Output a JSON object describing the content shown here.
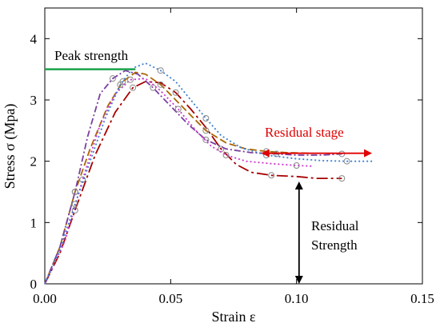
{
  "chart_data": {
    "type": "line",
    "xlabel": "Strain ε",
    "ylabel": "Stress σ (Mpa)",
    "xlim": [
      0,
      0.15
    ],
    "ylim": [
      0,
      4.5
    ],
    "x_ticks": [
      0,
      0.05,
      0.1,
      0.15
    ],
    "x_tick_labels": [
      "0.00",
      "0.05",
      "0.10",
      "0.15"
    ],
    "y_ticks": [
      0,
      1,
      2,
      3,
      4
    ],
    "y_tick_labels": [
      "0",
      "1",
      "2",
      "3",
      "4"
    ],
    "grid": false,
    "series": [
      {
        "color": "#a60000",
        "dash": "dashdot-long",
        "points": [
          [
            0,
            0
          ],
          [
            0.006,
            0.5
          ],
          [
            0.012,
            1.2
          ],
          [
            0.02,
            2.1
          ],
          [
            0.028,
            2.8
          ],
          [
            0.035,
            3.2
          ],
          [
            0.04,
            3.3
          ],
          [
            0.046,
            3.28
          ],
          [
            0.052,
            3.12
          ],
          [
            0.058,
            2.85
          ],
          [
            0.064,
            2.55
          ],
          [
            0.07,
            2.2
          ],
          [
            0.076,
            1.95
          ],
          [
            0.082,
            1.82
          ],
          [
            0.09,
            1.77
          ],
          [
            0.1,
            1.75
          ],
          [
            0.108,
            1.72
          ],
          [
            0.118,
            1.72
          ]
        ]
      },
      {
        "color": "#aa6600",
        "dash": "dash",
        "points": [
          [
            0,
            0
          ],
          [
            0.006,
            0.6
          ],
          [
            0.012,
            1.5
          ],
          [
            0.018,
            2.2
          ],
          [
            0.025,
            2.9
          ],
          [
            0.031,
            3.3
          ],
          [
            0.036,
            3.45
          ],
          [
            0.04,
            3.42
          ],
          [
            0.046,
            3.25
          ],
          [
            0.052,
            3.0
          ],
          [
            0.058,
            2.75
          ],
          [
            0.064,
            2.5
          ],
          [
            0.072,
            2.3
          ],
          [
            0.08,
            2.2
          ],
          [
            0.088,
            2.16
          ],
          [
            0.096,
            2.14
          ],
          [
            0.105,
            2.13
          ]
        ]
      },
      {
        "color": "#7a3fa0",
        "dash": "dashdot",
        "points": [
          [
            0,
            0
          ],
          [
            0.006,
            0.6
          ],
          [
            0.012,
            1.5
          ],
          [
            0.017,
            2.4
          ],
          [
            0.022,
            3.1
          ],
          [
            0.027,
            3.35
          ],
          [
            0.032,
            3.48
          ],
          [
            0.037,
            3.42
          ],
          [
            0.043,
            3.2
          ],
          [
            0.05,
            2.9
          ],
          [
            0.057,
            2.6
          ],
          [
            0.064,
            2.35
          ],
          [
            0.072,
            2.2
          ],
          [
            0.082,
            2.14
          ],
          [
            0.092,
            2.12
          ],
          [
            0.1,
            2.1
          ],
          [
            0.11,
            2.1
          ],
          [
            0.118,
            2.12
          ]
        ]
      },
      {
        "color": "#cc33cc",
        "dash": "dot",
        "points": [
          [
            0,
            0
          ],
          [
            0.008,
            0.7
          ],
          [
            0.015,
            1.7
          ],
          [
            0.022,
            2.6
          ],
          [
            0.028,
            3.1
          ],
          [
            0.034,
            3.33
          ],
          [
            0.04,
            3.35
          ],
          [
            0.046,
            3.15
          ],
          [
            0.053,
            2.85
          ],
          [
            0.06,
            2.5
          ],
          [
            0.066,
            2.25
          ],
          [
            0.072,
            2.1
          ],
          [
            0.08,
            2.0
          ],
          [
            0.09,
            1.96
          ],
          [
            0.1,
            1.93
          ],
          [
            0.106,
            1.92
          ]
        ]
      },
      {
        "color": "#3a7fd0",
        "dash": "dot",
        "points": [
          [
            0,
            0
          ],
          [
            0.006,
            0.55
          ],
          [
            0.012,
            1.3
          ],
          [
            0.018,
            2.0
          ],
          [
            0.024,
            2.7
          ],
          [
            0.03,
            3.25
          ],
          [
            0.035,
            3.52
          ],
          [
            0.04,
            3.6
          ],
          [
            0.046,
            3.48
          ],
          [
            0.052,
            3.3
          ],
          [
            0.058,
            3.0
          ],
          [
            0.064,
            2.7
          ],
          [
            0.07,
            2.42
          ],
          [
            0.078,
            2.22
          ],
          [
            0.088,
            2.1
          ],
          [
            0.1,
            2.04
          ],
          [
            0.11,
            2.01
          ],
          [
            0.12,
            2.0
          ],
          [
            0.13,
            2.0
          ]
        ]
      }
    ],
    "annotations": {
      "peak_strength": "Peak strength",
      "peak_strength_y": 3.5,
      "residual_stage": "Residual stage",
      "residual_stage_x": [
        0.086,
        0.13
      ],
      "residual_stage_y": 2.3,
      "residual_strength_line1": "Residual",
      "residual_strength_line2": "Strength",
      "residual_strength_x": 0.101,
      "residual_strength_y": [
        0,
        1.67
      ]
    },
    "colors": {
      "peak_line": "#1aa34a",
      "residual_stage": "#e00000",
      "residual_strength": "#000000"
    }
  }
}
